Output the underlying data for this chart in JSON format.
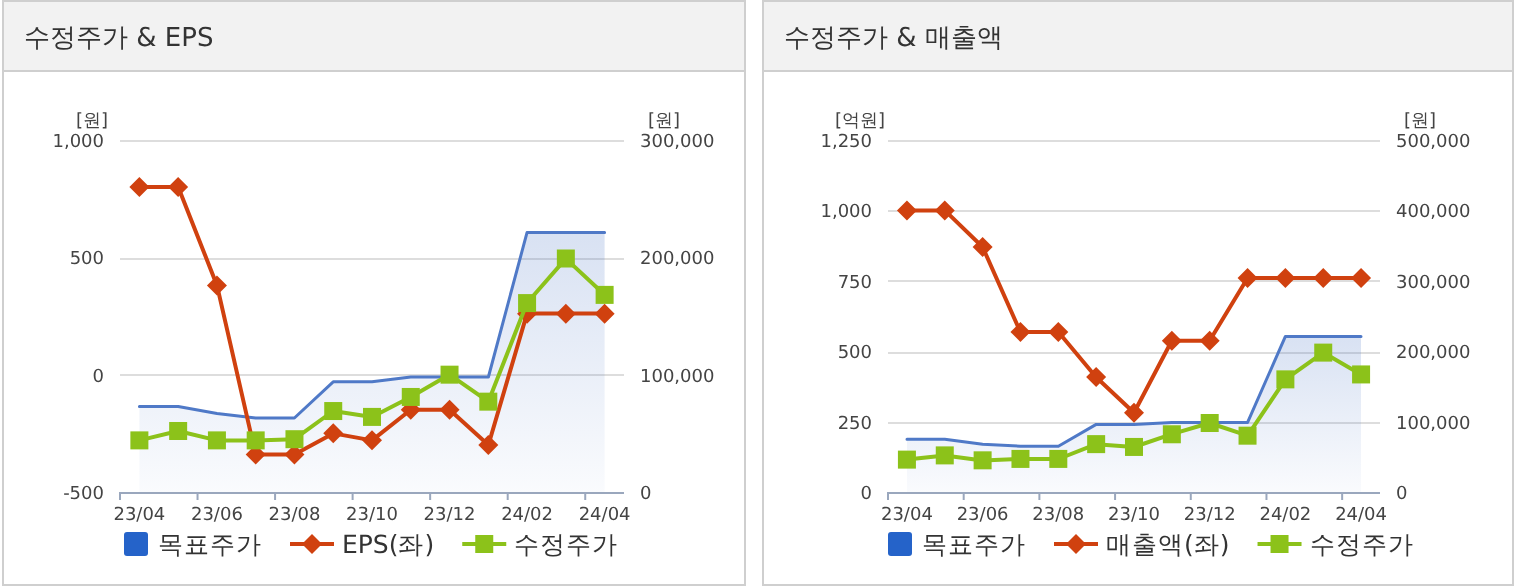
{
  "chart_data": [
    {
      "type": "line",
      "title": "수정주가 & EPS",
      "ylabel": "[원]",
      "y2label": "[원]",
      "categories": [
        "23/04",
        null,
        "23/06",
        null,
        "23/08",
        null,
        "23/10",
        null,
        "23/12",
        null,
        "24/02",
        null,
        "24/04"
      ],
      "ylim": [
        -500,
        1000
      ],
      "yticks": [
        {
          "value": -500,
          "label": "-500"
        },
        0,
        500,
        {
          "value": 1000,
          "label": "1,000"
        }
      ],
      "y2lim": [
        0,
        300000
      ],
      "y2ticks": [
        0,
        {
          "value": 100000,
          "label": "100,000"
        },
        {
          "value": 200000,
          "label": "200,000"
        },
        {
          "value": 300000,
          "label": "300,000"
        }
      ],
      "grid": "y",
      "legend": "bottom",
      "series": [
        {
          "name": "목표주가",
          "type": "area",
          "axis": "y2",
          "color": "#4f79c7",
          "marker": "none",
          "values": [
            73000,
            73000,
            67000,
            63000,
            63000,
            94000,
            94000,
            98000,
            98000,
            98000,
            221000,
            221000,
            221000
          ]
        },
        {
          "name": "EPS(좌)",
          "type": "line",
          "axis": "y",
          "color": "#d0410f",
          "marker": "diamond",
          "values": [
            800,
            800,
            380,
            -340,
            -340,
            -250,
            -280,
            -150,
            -150,
            -300,
            260,
            260,
            260
          ]
        },
        {
          "name": "수정주가",
          "type": "line",
          "axis": "y2",
          "color": "#8cc21a",
          "marker": "square",
          "values": [
            44000,
            52000,
            44000,
            44000,
            45000,
            69000,
            64000,
            81000,
            100000,
            77000,
            161000,
            199000,
            168000
          ]
        }
      ]
    },
    {
      "type": "line",
      "title": "수정주가 & 매출액",
      "ylabel": "[억원]",
      "y2label": "[원]",
      "categories": [
        "23/04",
        null,
        "23/06",
        null,
        "23/08",
        null,
        "23/10",
        null,
        "23/12",
        null,
        "24/02",
        null,
        "24/04"
      ],
      "ylim": [
        0,
        1250
      ],
      "yticks": [
        0,
        250,
        500,
        750,
        {
          "value": 1000,
          "label": "1,000"
        },
        {
          "value": 1250,
          "label": "1,250"
        }
      ],
      "y2lim": [
        0,
        500000
      ],
      "y2ticks": [
        0,
        {
          "value": 100000,
          "label": "100,000"
        },
        {
          "value": 200000,
          "label": "200,000"
        },
        {
          "value": 300000,
          "label": "300,000"
        },
        {
          "value": 400000,
          "label": "400,000"
        },
        {
          "value": 500000,
          "label": "500,000"
        }
      ],
      "grid": "y",
      "legend": "bottom",
      "series": [
        {
          "name": "목표주가",
          "type": "area",
          "axis": "y2",
          "color": "#4f79c7",
          "marker": "none",
          "values": [
            75000,
            75000,
            68000,
            65000,
            65000,
            96000,
            96000,
            99000,
            99000,
            99000,
            221000,
            221000,
            221000
          ]
        },
        {
          "name": "매출액(좌)",
          "type": "line",
          "axis": "y",
          "color": "#d0410f",
          "marker": "diamond",
          "values": [
            1000,
            1000,
            870,
            568,
            568,
            408,
            281,
            537,
            537,
            760,
            760,
            760,
            760
          ]
        },
        {
          "name": "수정주가",
          "type": "line",
          "axis": "y2",
          "color": "#8cc21a",
          "marker": "square",
          "values": [
            46000,
            52000,
            45000,
            47000,
            47000,
            68000,
            64000,
            82000,
            98000,
            80000,
            160000,
            198000,
            167000
          ]
        }
      ]
    }
  ]
}
